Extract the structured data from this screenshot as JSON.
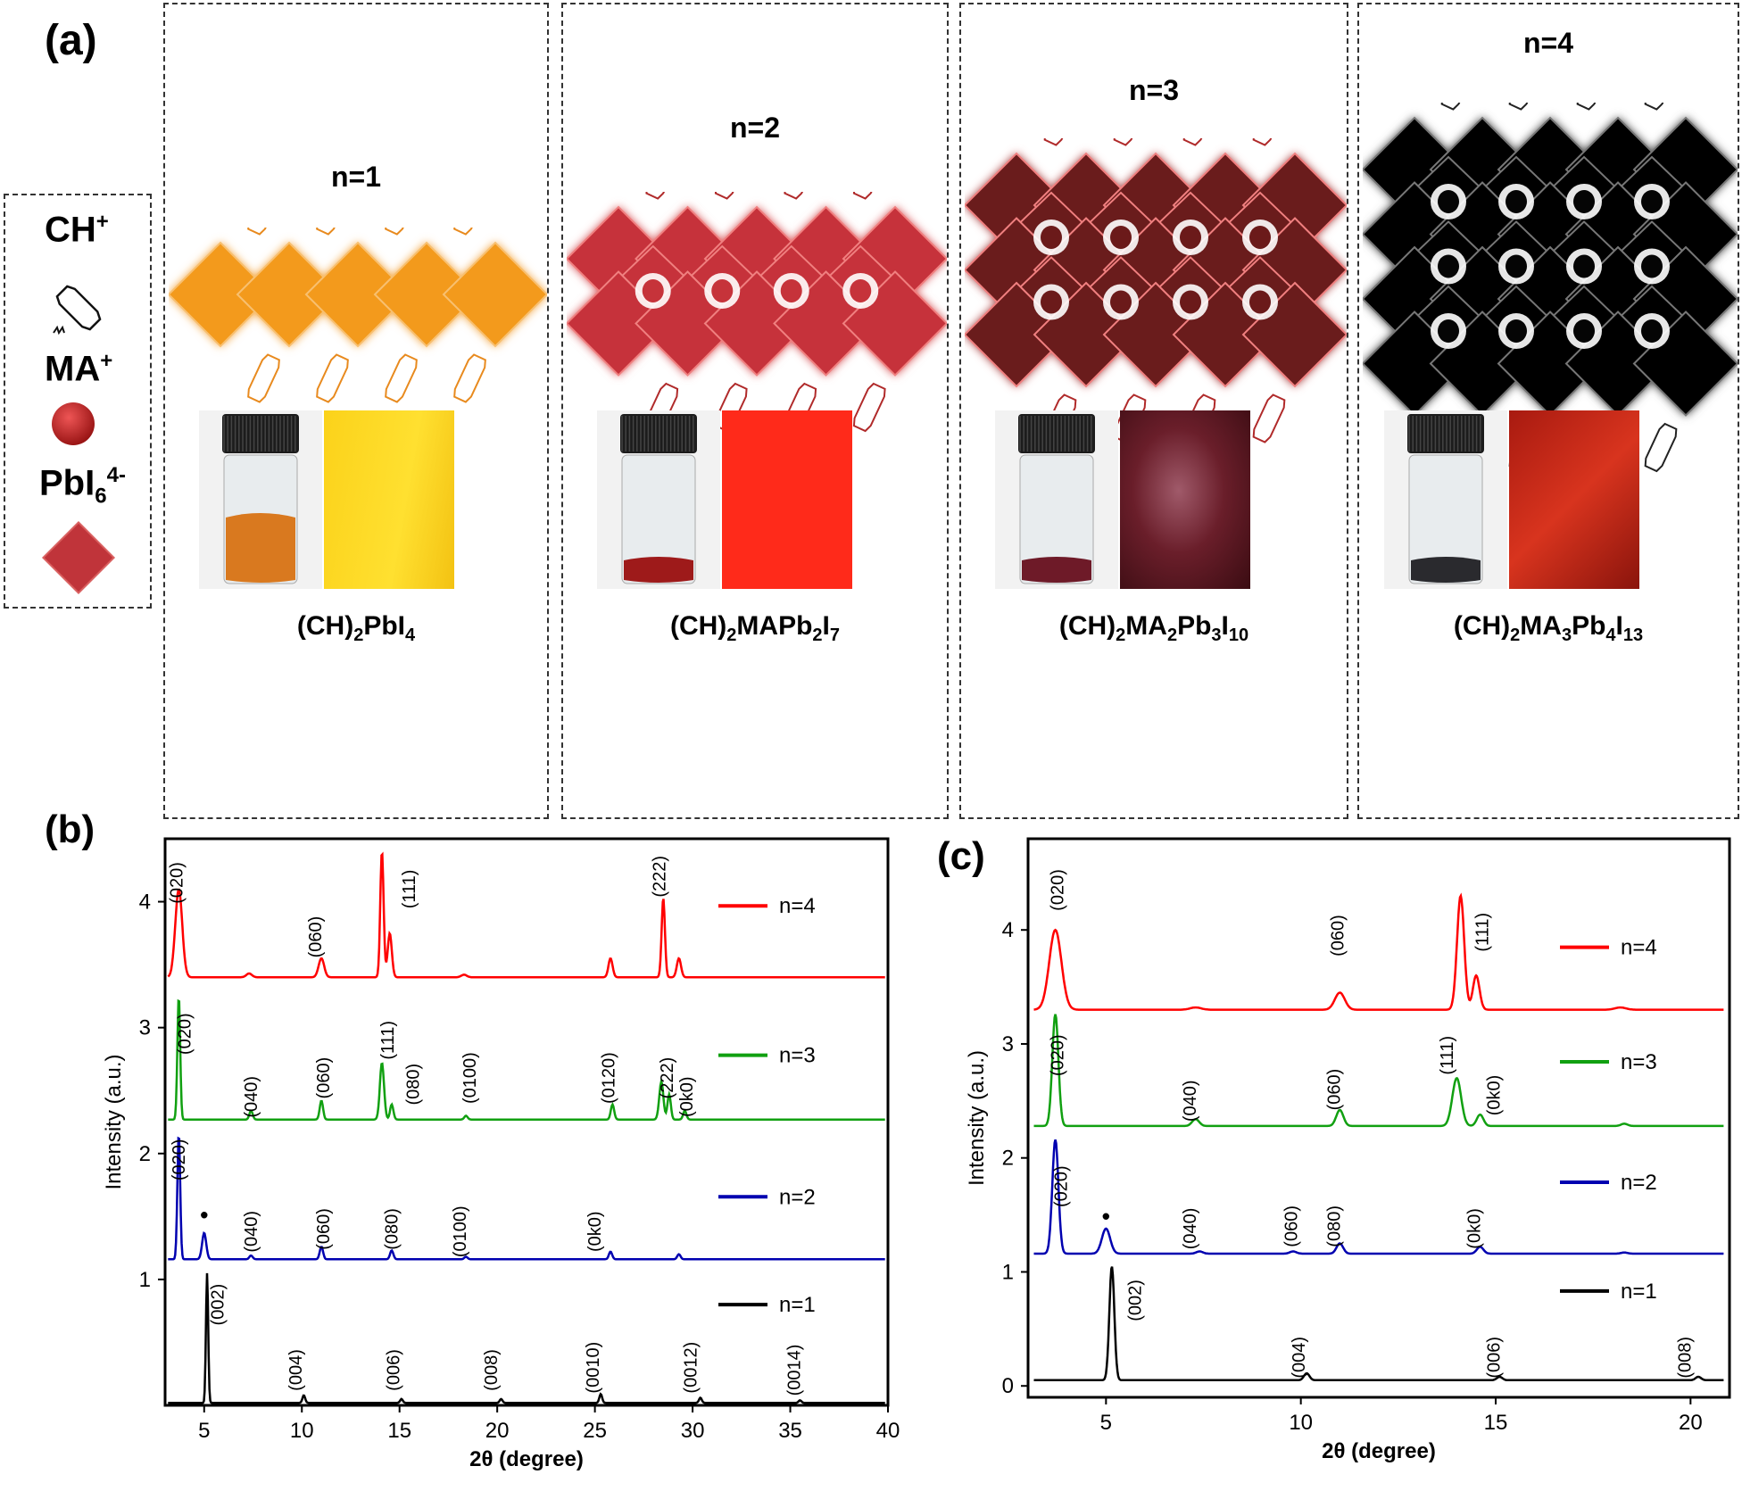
{
  "figure": {
    "panel_a_label": "(a)",
    "panel_b_label": "(b)",
    "panel_c_label": "(c)",
    "legend": {
      "ch_label": "CH",
      "ch_sup": "+",
      "ma_label": "MA",
      "ma_sup": "+",
      "pb_label": "PbI",
      "pb_sub": "6",
      "pb_sup": "4-"
    },
    "structures": [
      {
        "n": "n=1",
        "color": "#f39a1e",
        "formula_parts": [
          [
            "(CH)",
            ""
          ],
          [
            "2",
            "sub"
          ],
          [
            "PbI",
            ""
          ],
          [
            "4",
            "sub"
          ]
        ]
      },
      {
        "n": "n=2",
        "color": "#c6333a",
        "formula_parts": [
          [
            "(CH)",
            ""
          ],
          [
            "2",
            "sub"
          ],
          [
            "MAPb",
            ""
          ],
          [
            "2",
            "sub"
          ],
          [
            "I",
            ""
          ],
          [
            "7",
            "sub"
          ]
        ]
      },
      {
        "n": "n=3",
        "color": "#6b1a1a",
        "formula_parts": [
          [
            "(CH)",
            ""
          ],
          [
            "2",
            "sub"
          ],
          [
            "MA",
            ""
          ],
          [
            "2",
            "sub"
          ],
          [
            "Pb",
            ""
          ],
          [
            "3",
            "sub"
          ],
          [
            "I",
            ""
          ],
          [
            "10",
            "sub"
          ]
        ]
      },
      {
        "n": "n=4",
        "color": "#050505",
        "formula_parts": [
          [
            "(CH)",
            ""
          ],
          [
            "2",
            "sub"
          ],
          [
            "MA",
            ""
          ],
          [
            "3",
            "sub"
          ],
          [
            "Pb",
            ""
          ],
          [
            "4",
            "sub"
          ],
          [
            "I",
            ""
          ],
          [
            "13",
            "sub"
          ]
        ]
      }
    ]
  },
  "chart_data": [
    {
      "type": "line",
      "panel": "(b)",
      "xlabel": "2θ (degree)",
      "ylabel": "Intensity (a.u.)",
      "xlim": [
        3,
        40
      ],
      "ylim": [
        0,
        4.5
      ],
      "xticks": [
        5,
        10,
        15,
        20,
        25,
        30,
        35,
        40
      ],
      "yticks": [
        1,
        2,
        3,
        4
      ],
      "series": [
        {
          "name": "n=4",
          "color": "#ff0000",
          "baseline": 3.4,
          "peaks": [
            [
              3.7,
              0.7,
              0.25
            ],
            [
              7.3,
              0.03,
              0.2
            ],
            [
              11.0,
              0.15,
              0.2
            ],
            [
              14.1,
              1.0,
              0.12
            ],
            [
              14.5,
              0.35,
              0.15
            ],
            [
              18.3,
              0.02,
              0.2
            ],
            [
              25.8,
              0.15,
              0.15
            ],
            [
              28.5,
              0.63,
              0.12
            ],
            [
              29.3,
              0.15,
              0.15
            ]
          ]
        },
        {
          "name": "n=3",
          "color": "#11a011",
          "baseline": 2.27,
          "peaks": [
            [
              3.7,
              0.98,
              0.1
            ],
            [
              7.4,
              0.07,
              0.12
            ],
            [
              11.0,
              0.15,
              0.12
            ],
            [
              14.1,
              0.45,
              0.15
            ],
            [
              14.6,
              0.12,
              0.12
            ],
            [
              18.4,
              0.03,
              0.12
            ],
            [
              25.9,
              0.12,
              0.12
            ],
            [
              28.4,
              0.3,
              0.15
            ],
            [
              28.8,
              0.2,
              0.12
            ],
            [
              29.6,
              0.07,
              0.12
            ]
          ]
        },
        {
          "name": "n=2",
          "color": "#0000b0",
          "baseline": 1.16,
          "peaks": [
            [
              3.7,
              1.0,
              0.1
            ],
            [
              5.0,
              0.21,
              0.15
            ],
            [
              7.4,
              0.03,
              0.12
            ],
            [
              11.0,
              0.1,
              0.12
            ],
            [
              14.6,
              0.07,
              0.12
            ],
            [
              18.4,
              0.02,
              0.12
            ],
            [
              25.8,
              0.06,
              0.12
            ],
            [
              29.3,
              0.04,
              0.12
            ]
          ]
        },
        {
          "name": "n=1",
          "color": "#000000",
          "baseline": 0.02,
          "peaks": [
            [
              5.15,
              1.03,
              0.08
            ],
            [
              10.1,
              0.06,
              0.1
            ],
            [
              15.1,
              0.03,
              0.1
            ],
            [
              20.2,
              0.03,
              0.1
            ],
            [
              25.3,
              0.07,
              0.1
            ],
            [
              30.4,
              0.04,
              0.1
            ],
            [
              35.5,
              0.02,
              0.1
            ]
          ]
        }
      ],
      "annotations": [
        {
          "text": "(020)",
          "x": 3.9,
          "y": 4.15
        },
        {
          "text": "(060)",
          "x": 11.0,
          "y": 3.72
        },
        {
          "text": "(111)",
          "x": 15.8,
          "y": 4.1
        },
        {
          "text": "(222)",
          "x": 28.6,
          "y": 4.2
        },
        {
          "text": "(020)",
          "x": 4.3,
          "y": 2.95
        },
        {
          "text": "(040)",
          "x": 7.7,
          "y": 2.45
        },
        {
          "text": "(060)",
          "x": 11.4,
          "y": 2.6
        },
        {
          "text": "(111)",
          "x": 14.7,
          "y": 2.9
        },
        {
          "text": "(080)",
          "x": 16.0,
          "y": 2.55
        },
        {
          "text": "(0100)",
          "x": 18.9,
          "y": 2.6
        },
        {
          "text": "(0120)",
          "x": 26.0,
          "y": 2.6
        },
        {
          "text": "(222)",
          "x": 29.0,
          "y": 2.6
        },
        {
          "text": "(0k0)",
          "x": 30.0,
          "y": 2.45
        },
        {
          "text": "(020)",
          "x": 4.0,
          "y": 1.95
        },
        {
          "text": "•",
          "x": 5.0,
          "y": 1.45
        },
        {
          "text": "(040)",
          "x": 7.7,
          "y": 1.38
        },
        {
          "text": "(060)",
          "x": 11.4,
          "y": 1.4
        },
        {
          "text": "(080)",
          "x": 14.9,
          "y": 1.4
        },
        {
          "text": "(0100)",
          "x": 18.4,
          "y": 1.38
        },
        {
          "text": "(0k0)",
          "x": 25.3,
          "y": 1.38
        },
        {
          "text": "(002)",
          "x": 6.0,
          "y": 0.8
        },
        {
          "text": "(004)",
          "x": 10.0,
          "y": 0.28
        },
        {
          "text": "(006)",
          "x": 15.0,
          "y": 0.28
        },
        {
          "text": "(008)",
          "x": 20.0,
          "y": 0.28
        },
        {
          "text": "(0010)",
          "x": 25.2,
          "y": 0.3
        },
        {
          "text": "(0012)",
          "x": 30.2,
          "y": 0.3
        },
        {
          "text": "(0014)",
          "x": 35.5,
          "y": 0.28
        }
      ],
      "legend": [
        "n=4",
        "n=3",
        "n=2",
        "n=1"
      ]
    },
    {
      "type": "line",
      "panel": "(c)",
      "xlabel": "2θ (degree)",
      "ylabel": "Intensity (a.u.)",
      "xlim": [
        3,
        21
      ],
      "ylim": [
        -0.1,
        4.8
      ],
      "xticks": [
        5,
        10,
        15,
        20
      ],
      "yticks": [
        0,
        1,
        2,
        3,
        4
      ],
      "series": [
        {
          "name": "n=4",
          "color": "#ff0000",
          "baseline": 3.3,
          "peaks": [
            [
              3.7,
              0.7,
              0.22
            ],
            [
              7.3,
              0.02,
              0.2
            ],
            [
              11.0,
              0.15,
              0.18
            ],
            [
              14.1,
              1.0,
              0.13
            ],
            [
              14.5,
              0.3,
              0.12
            ],
            [
              18.2,
              0.02,
              0.2
            ]
          ]
        },
        {
          "name": "n=3",
          "color": "#11a011",
          "baseline": 2.28,
          "peaks": [
            [
              3.7,
              0.98,
              0.11
            ],
            [
              7.3,
              0.06,
              0.13
            ],
            [
              11.0,
              0.14,
              0.13
            ],
            [
              14.0,
              0.42,
              0.16
            ],
            [
              14.6,
              0.1,
              0.12
            ],
            [
              18.3,
              0.02,
              0.12
            ]
          ]
        },
        {
          "name": "n=2",
          "color": "#0000b0",
          "baseline": 1.16,
          "peaks": [
            [
              3.7,
              1.0,
              0.11
            ],
            [
              5.0,
              0.22,
              0.15
            ],
            [
              7.4,
              0.02,
              0.12
            ],
            [
              9.8,
              0.02,
              0.12
            ],
            [
              11.0,
              0.09,
              0.12
            ],
            [
              14.6,
              0.06,
              0.12
            ],
            [
              18.3,
              0.01,
              0.12
            ]
          ]
        },
        {
          "name": "n=1",
          "color": "#000000",
          "baseline": 0.05,
          "peaks": [
            [
              5.15,
              1.0,
              0.09
            ],
            [
              10.15,
              0.06,
              0.1
            ],
            [
              15.1,
              0.03,
              0.1
            ],
            [
              20.2,
              0.03,
              0.1
            ]
          ]
        }
      ],
      "annotations": [
        {
          "text": "(020)",
          "x": 3.9,
          "y": 4.35
        },
        {
          "text": "(060)",
          "x": 11.1,
          "y": 3.95
        },
        {
          "text": "(111)",
          "x": 14.8,
          "y": 3.98
        },
        {
          "text": "(020)",
          "x": 3.9,
          "y": 2.9
        },
        {
          "text": "(040)",
          "x": 7.3,
          "y": 2.5
        },
        {
          "text": "(060)",
          "x": 11.0,
          "y": 2.6
        },
        {
          "text": "(111)",
          "x": 13.9,
          "y": 2.9
        },
        {
          "text": "(0k0)",
          "x": 15.1,
          "y": 2.55
        },
        {
          "text": "(020)",
          "x": 4.0,
          "y": 1.75
        },
        {
          "text": "•",
          "x": 5.0,
          "y": 1.42
        },
        {
          "text": "(040)",
          "x": 7.3,
          "y": 1.38
        },
        {
          "text": "(060)",
          "x": 9.9,
          "y": 1.4
        },
        {
          "text": "(080)",
          "x": 11.0,
          "y": 1.4
        },
        {
          "text": "(0k0)",
          "x": 14.6,
          "y": 1.38
        },
        {
          "text": "(002)",
          "x": 5.9,
          "y": 0.75
        },
        {
          "text": "(004)",
          "x": 10.1,
          "y": 0.25
        },
        {
          "text": "(006)",
          "x": 15.1,
          "y": 0.25
        },
        {
          "text": "(008)",
          "x": 20.0,
          "y": 0.25
        }
      ],
      "legend": [
        "n=4",
        "n=3",
        "n=2",
        "n=1"
      ]
    }
  ]
}
